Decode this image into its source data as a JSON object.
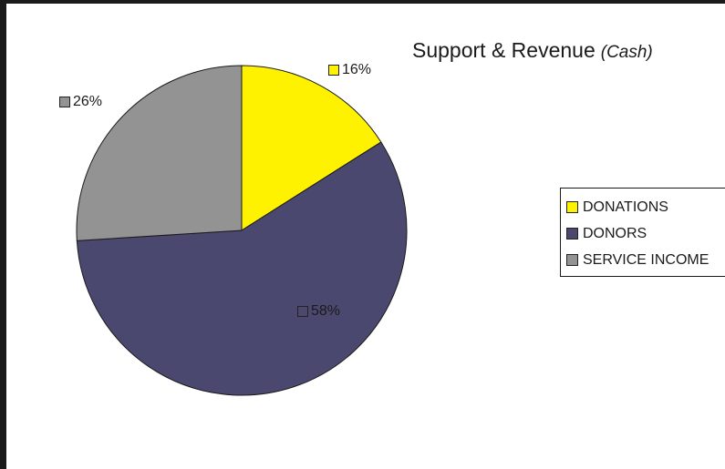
{
  "chart_data": {
    "type": "pie",
    "title": "Support & Revenue",
    "subtitle": "(Cash)",
    "legend_position": "right",
    "slices": [
      {
        "name": "DONATIONS",
        "value": 16,
        "label": "16%",
        "color": "#fff200"
      },
      {
        "name": "DONORS",
        "value": 58,
        "label": "58%",
        "color": "#4b4870"
      },
      {
        "name": "SERVICE INCOME",
        "value": 26,
        "label": "26%",
        "color": "#939393"
      }
    ]
  }
}
